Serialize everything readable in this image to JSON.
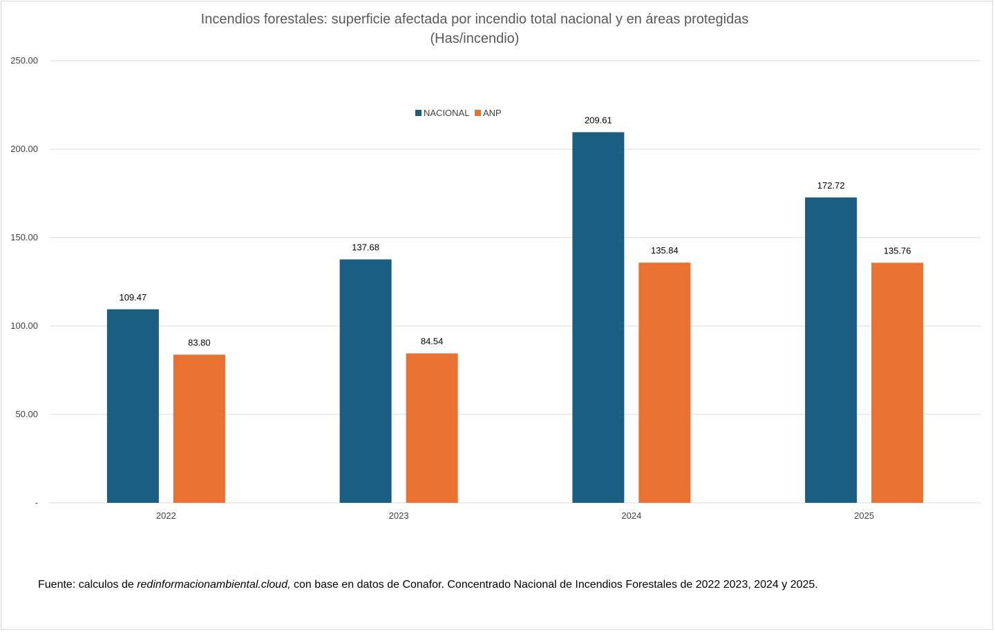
{
  "chart_data": {
    "type": "bar",
    "title": "Incendios forestales: superficie afectada por incendio total nacional y en áreas protegidas",
    "subtitle": "(Has/incendio)",
    "categories": [
      "2022",
      "2023",
      "2024",
      "2025"
    ],
    "series": [
      {
        "name": "NACIONAL",
        "color": "#1a5f82",
        "values": [
          109.47,
          137.68,
          209.61,
          172.72
        ],
        "labels": [
          "109.47",
          "137.68",
          "209.61",
          "172.72"
        ]
      },
      {
        "name": "ANP",
        "color": "#e97132",
        "values": [
          83.8,
          84.54,
          135.84,
          135.76
        ],
        "labels": [
          "83.80",
          "84.54",
          "135.84",
          "135.76"
        ]
      }
    ],
    "ylim": [
      0,
      250
    ],
    "yticks": [
      0,
      50,
      100,
      150,
      200,
      250
    ],
    "ytick_labels": [
      "-",
      "50.00",
      "100.00",
      "150.00",
      "200.00",
      "250.00"
    ],
    "grid": true,
    "legend": "top-center"
  },
  "source": {
    "prefix": "Fuente: calculos de ",
    "site": "redinformacionambiental.cloud,",
    "suffix": " con base en datos de Conafor. Concentrado Nacional de Incendios Forestales de 2022 2023, 2024 y 2025."
  }
}
